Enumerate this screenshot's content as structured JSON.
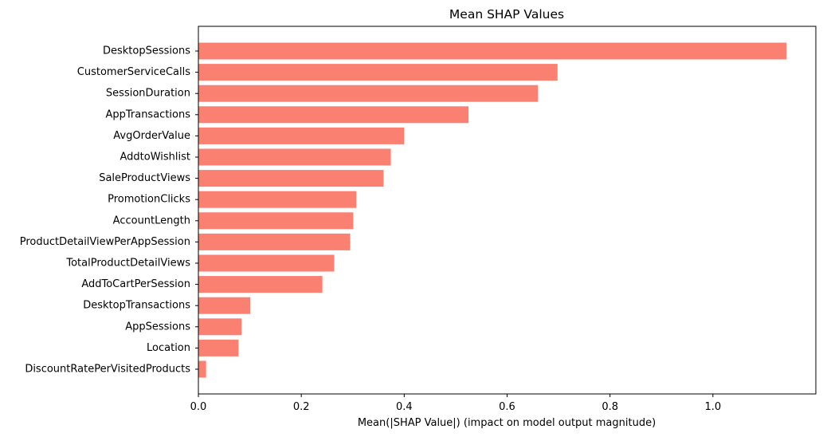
{
  "chart_data": {
    "type": "bar",
    "orientation": "horizontal",
    "title": "Mean SHAP Values",
    "xlabel": "Mean(|SHAP Value|) (impact on model output magnitude)",
    "ylabel": "",
    "xlim": [
      0,
      1.2
    ],
    "xticks": [
      0.0,
      0.2,
      0.4,
      0.6,
      0.8,
      1.0
    ],
    "xtick_labels": [
      "0.0",
      "0.2",
      "0.4",
      "0.6",
      "0.8",
      "1.0"
    ],
    "bar_color": "#fa8072",
    "grid": false,
    "categories": [
      "DesktopSessions",
      "CustomerServiceCalls",
      "SessionDuration",
      "AppTransactions",
      "AvgOrderValue",
      "AddtoWishlist",
      "SaleProductViews",
      "PromotionClicks",
      "AccountLength",
      "ProductDetailViewPerAppSession",
      "TotalProductDetailViews",
      "AddToCartPerSession",
      "DesktopTransactions",
      "AppSessions",
      "Location",
      "DiscountRatePerVisitedProducts"
    ],
    "values": [
      1.143,
      0.698,
      0.66,
      0.525,
      0.4,
      0.374,
      0.36,
      0.307,
      0.301,
      0.295,
      0.264,
      0.241,
      0.101,
      0.084,
      0.078,
      0.015
    ]
  }
}
